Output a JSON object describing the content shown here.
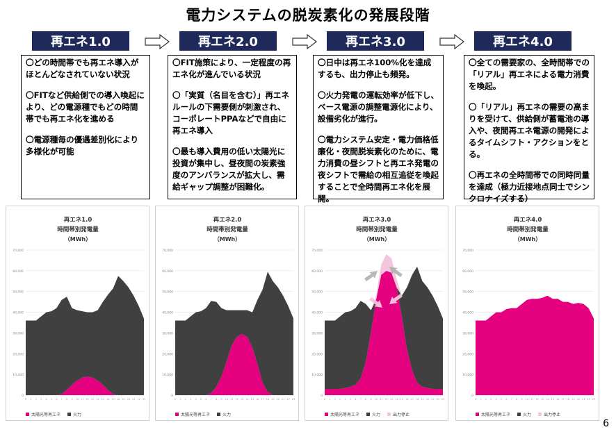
{
  "page": {
    "title": "電力システムの脱炭素化の発展段階",
    "page_number": "6"
  },
  "stages": [
    {
      "label": "再エネ1.0",
      "paragraphs": [
        "〇どの時間帯でも再エネ導入がほとんどなされていない状況",
        "〇FITなど供給側での導入喚起により、どの電源種でもどの時間帯でも再エネ化を進める",
        "〇電源種毎の優遇差別化により多様化が可能"
      ]
    },
    {
      "label": "再エネ2.0",
      "paragraphs": [
        "〇FIT施策により、一定程度の再エネ化が進んでいる状況",
        "〇「実質（名目を含む）」再エネルールの下需要側が刺激され、コーポレートPPAなどで自由に再エネ導入",
        "〇最も導入費用の低い太陽光に投資が集中し、昼夜間の炭素強度のアンバランスが拡大し、需給ギャップ調整が困難化。"
      ]
    },
    {
      "label": "再エネ3.0",
      "paragraphs": [
        "〇日中は再エネ100%化を達成するも、出力停止も頻発。",
        "〇火力発電の運転効率が低下し、ベース電源の調整電源化により、設備劣化が進行。",
        "〇電力システム安定・電力価格低廉化・夜間脱炭素化のために、電力消費の昼シフトと再エネ発電の夜シフトで需給の相互追従を喚起することで全時間再エネ化を展開。"
      ]
    },
    {
      "label": "再エネ4.0",
      "paragraphs": [
        "〇全ての需要家の、全時間帯での「リアル」再エネによる電力消費を喚起。",
        "〇「リアル」再エネの需要の高まりを受けて、供給側が蓄電池の導入や、夜間再エネ電源の開発によるタイムシフト・アクションをとる。",
        "〇再エネの全時間帯での同時同量を達成（極力近接地点同士でシンクロナイズする）"
      ]
    }
  ],
  "chart_data": [
    {
      "type": "area",
      "title": "再エネ1.0",
      "subtitle": "時間帯別発電量",
      "unit": "（MWh）",
      "x": [
        0,
        1,
        2,
        3,
        4,
        5,
        6,
        7,
        8,
        9,
        10,
        11,
        12,
        13,
        14,
        15,
        16,
        17,
        18,
        19,
        20,
        21,
        22,
        23
      ],
      "ylim": [
        0,
        70000
      ],
      "yticks": [
        "0",
        "10,000",
        "20,000",
        "30,000",
        "40,000",
        "50,000",
        "60,000",
        "70,000"
      ],
      "series": [
        {
          "name": "太陽光等再エネ",
          "color": "#e4007f",
          "values": [
            0,
            0,
            0,
            0,
            0,
            0,
            0,
            500,
            2500,
            5000,
            7000,
            8500,
            9000,
            8500,
            7000,
            5000,
            2500,
            500,
            0,
            0,
            0,
            0,
            0,
            0
          ]
        },
        {
          "name": "火力",
          "color": "#404040",
          "values": [
            36000,
            36000,
            36000,
            38000,
            40000,
            40500,
            42000,
            45500,
            45000,
            37000,
            34000,
            32000,
            31000,
            31500,
            34000,
            40000,
            46000,
            51000,
            57500,
            55000,
            52000,
            48000,
            43000,
            37000
          ]
        }
      ],
      "legend": [
        "太陽光等再エネ",
        "火力"
      ]
    },
    {
      "type": "area",
      "title": "再エネ2.0",
      "subtitle": "時間帯別発電量",
      "unit": "（MWh）",
      "x": [
        0,
        1,
        2,
        3,
        4,
        5,
        6,
        7,
        8,
        9,
        10,
        11,
        12,
        13,
        14,
        15,
        16,
        17,
        18,
        19,
        20,
        21,
        22,
        23
      ],
      "ylim": [
        0,
        70000
      ],
      "yticks": [
        "0",
        "10,000",
        "20,000",
        "30,000",
        "40,000",
        "50,000",
        "60,000",
        "70,000"
      ],
      "series": [
        {
          "name": "太陽光等再エネ",
          "color": "#e4007f",
          "values": [
            0,
            0,
            0,
            0,
            0,
            0,
            0,
            1000,
            4000,
            9000,
            16000,
            24000,
            28000,
            29500,
            28000,
            23000,
            15000,
            6000,
            1500,
            0,
            0,
            0,
            0,
            0
          ]
        },
        {
          "name": "火力",
          "color": "#404040",
          "values": [
            36000,
            36000,
            36000,
            38000,
            40000,
            40500,
            42000,
            44500,
            41000,
            33000,
            25000,
            17000,
            13000,
            11500,
            13000,
            17000,
            31000,
            45000,
            58000,
            55000,
            52000,
            48000,
            43000,
            37000
          ]
        }
      ],
      "legend": [
        "太陽光等再エネ",
        "火力"
      ]
    },
    {
      "type": "area",
      "title": "再エネ3.0",
      "subtitle": "時間帯別発電量",
      "unit": "（MWh）",
      "x": [
        0,
        1,
        2,
        3,
        4,
        5,
        6,
        7,
        8,
        9,
        10,
        11,
        12,
        13,
        14,
        15,
        16,
        17,
        18,
        19,
        20,
        21,
        22,
        23
      ],
      "ylim": [
        0,
        70000
      ],
      "yticks": [
        "0",
        "10,000",
        "20,000",
        "30,000",
        "40,000",
        "50,000",
        "60,000",
        "70,000"
      ],
      "series": [
        {
          "name": "太陽光等再エネ",
          "color": "#e4007f",
          "values": [
            3000,
            3000,
            3000,
            3000,
            3500,
            4000,
            5000,
            8000,
            16000,
            30000,
            46000,
            58000,
            60000,
            59000,
            52000,
            38000,
            22000,
            12000,
            6000,
            4000,
            3500,
            3000,
            3000,
            3000
          ]
        },
        {
          "name": "火力",
          "color": "#404040",
          "values": [
            33000,
            33000,
            33000,
            35000,
            36500,
            36500,
            37000,
            37500,
            28000,
            11000,
            0,
            0,
            0,
            0,
            0,
            10000,
            30000,
            46000,
            56000,
            51000,
            48500,
            45000,
            40000,
            34000
          ]
        },
        {
          "name": "出力停止",
          "color": "#f3c6dd",
          "values": [
            0,
            0,
            0,
            0,
            0,
            0,
            0,
            0,
            0,
            0,
            2000,
            5000,
            8000,
            7000,
            4000,
            0,
            0,
            0,
            0,
            0,
            0,
            0,
            0,
            0
          ]
        }
      ],
      "legend": [
        "太陽光等再エネ",
        "火力",
        "出力停止"
      ]
    },
    {
      "type": "area",
      "title": "再エネ4.0",
      "subtitle": "時間帯別発電量",
      "unit": "（MWh）",
      "x": [
        0,
        1,
        2,
        3,
        4,
        5,
        6,
        7,
        8,
        9,
        10,
        11,
        12,
        13,
        14,
        15,
        16,
        17,
        18,
        19,
        20,
        21,
        22,
        23
      ],
      "ylim": [
        0,
        70000
      ],
      "yticks": [
        "0",
        "10,000",
        "20,000",
        "30,000",
        "40,000",
        "50,000",
        "60,000",
        "70,000"
      ],
      "series": [
        {
          "name": "太陽光等再エネ",
          "color": "#e4007f",
          "values": [
            36000,
            36000,
            36000,
            38000,
            40000,
            40000,
            41500,
            42000,
            42000,
            44000,
            46000,
            46500,
            46500,
            47000,
            48000,
            46500,
            46500,
            45000,
            45000,
            44000,
            44500,
            44000,
            42000,
            37000
          ]
        },
        {
          "name": "火力",
          "color": "#404040",
          "values": [
            0,
            0,
            0,
            0,
            0,
            0,
            0,
            0,
            0,
            0,
            0,
            0,
            0,
            0,
            0,
            0,
            0,
            0,
            0,
            0,
            0,
            0,
            0,
            0
          ]
        }
      ],
      "legend": [
        "太陽光等再エネ",
        "火力",
        "出力停止"
      ]
    }
  ],
  "legend_colors": {
    "太陽光等再エネ": "#e4007f",
    "火力": "#404040",
    "出力停止": "#f3c6dd"
  }
}
